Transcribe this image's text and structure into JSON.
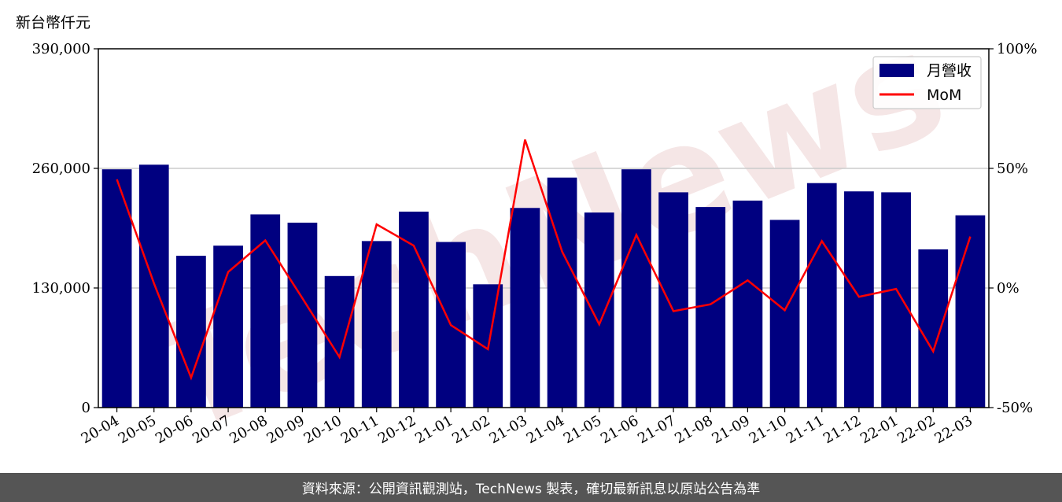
{
  "unit_label": "新台幣仟元",
  "footer_text": "資料來源：公開資訊觀測站，TechNews 製表，確切最新訊息以原站公告為準",
  "watermark": "TechNews",
  "colors": {
    "bar": "#000080",
    "line": "#ff0000",
    "grid": "#cccccc",
    "footer_bg": "#555555",
    "watermark": "#f2dede"
  },
  "chart_data": {
    "type": "bar",
    "categories": [
      "20-04",
      "20-05",
      "20-06",
      "20-07",
      "20-08",
      "20-09",
      "20-10",
      "20-11",
      "20-12",
      "21-01",
      "21-02",
      "21-03",
      "21-04",
      "21-05",
      "21-06",
      "21-07",
      "21-08",
      "21-09",
      "21-10",
      "21-11",
      "21-12",
      "22-01",
      "22-02",
      "22-03"
    ],
    "series": [
      {
        "name": "月營收",
        "type": "bar",
        "axis": "left",
        "values": [
          259000,
          264000,
          165000,
          176000,
          210000,
          201000,
          143000,
          181000,
          213000,
          180000,
          134000,
          217000,
          250000,
          212000,
          259000,
          234000,
          218000,
          225000,
          204000,
          244000,
          235000,
          234000,
          172000,
          209000
        ]
      },
      {
        "name": "MoM",
        "type": "line",
        "axis": "right",
        "values": [
          45.4,
          1.9,
          -37.5,
          6.7,
          19.9,
          -4.3,
          -28.9,
          26.6,
          17.7,
          -15.5,
          -25.6,
          62.0,
          15.2,
          -15.2,
          22.2,
          -9.7,
          -6.8,
          3.2,
          -9.3,
          19.6,
          -3.7,
          -0.4,
          -26.5,
          21.5
        ]
      }
    ],
    "ylim_left": [
      0,
      390000
    ],
    "yticks_left": [
      0,
      130000,
      260000,
      390000
    ],
    "ytick_labels_left": [
      "0",
      "130,000",
      "260,000",
      "390,000"
    ],
    "ylim_right": [
      -50,
      100
    ],
    "yticks_right": [
      -50,
      0,
      50,
      100
    ],
    "ytick_labels_right": [
      "-50%",
      "0%",
      "50%",
      "100%"
    ],
    "grid": "horizontal",
    "legend_position": "top-right"
  }
}
